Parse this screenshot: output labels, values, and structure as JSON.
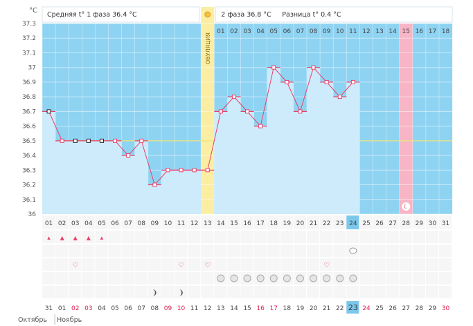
{
  "header": {
    "unit": "°C",
    "phase1": "Средняя t° 1 фаза 36.4 °C",
    "phase2": "2 фаза 36.8 °C",
    "diff": "Разница t° 0.4 °C",
    "ovulation_label": "ОВУЛЯЦИЯ"
  },
  "colors": {
    "sky": "#8fd3f2",
    "bar": "#cdebfb",
    "line": "#e8406a",
    "ovulation": "#fbeea2",
    "period": "#f7b5c5",
    "today": "#7cc8ec",
    "cover_line": "#ebe67a",
    "red_date": "#e02050"
  },
  "chart_data": {
    "type": "line",
    "ylabel": "°C",
    "ylim": [
      36.0,
      37.3
    ],
    "yticks": [
      "37.3",
      "37.2",
      "37.1",
      "37",
      "36.9",
      "36.8",
      "36.7",
      "36.6",
      "36.5",
      "36.4",
      "36.3",
      "36.2",
      "36.1",
      "36"
    ],
    "cycle_days": [
      "01",
      "02",
      "03",
      "04",
      "05",
      "06",
      "07",
      "08",
      "09",
      "10",
      "11",
      "12",
      "13",
      "14",
      "15",
      "16",
      "17",
      "18",
      "19",
      "20",
      "21",
      "22",
      "23",
      "24",
      "25",
      "26",
      "27",
      "28",
      "29",
      "30",
      "31"
    ],
    "temperatures": [
      36.7,
      36.5,
      36.5,
      36.5,
      36.5,
      36.5,
      36.4,
      36.5,
      36.2,
      36.3,
      36.3,
      36.3,
      36.3,
      36.7,
      36.8,
      36.7,
      36.6,
      37.0,
      36.9,
      36.7,
      37.0,
      36.9,
      36.8,
      36.9
    ],
    "black_markers_days": [
      1,
      3,
      4,
      5
    ],
    "ovulation_day": 13,
    "coverline": 36.5,
    "phase2_days": [
      "01",
      "02",
      "03",
      "04",
      "05",
      "06",
      "07",
      "08",
      "09",
      "10",
      "11",
      "12",
      "13",
      "14",
      "15",
      "16",
      "17",
      "18"
    ],
    "period_phase2_day": "15",
    "today_cycle_day": "24",
    "calendar_dates": [
      "31",
      "01",
      "02",
      "03",
      "04",
      "05",
      "06",
      "07",
      "08",
      "09",
      "10",
      "11",
      "12",
      "13",
      "14",
      "15",
      "16",
      "17",
      "18",
      "19",
      "20",
      "21",
      "22",
      "23",
      "24",
      "25",
      "26",
      "27",
      "28",
      "29",
      "30"
    ],
    "calendar_red_dates": [
      "02",
      "03",
      "09",
      "10",
      "16",
      "17",
      "23",
      "24",
      "30"
    ],
    "today_calendar_date": "23",
    "months": [
      "Октябрь",
      "Ноябрь"
    ]
  },
  "symbols": {
    "drops": [
      1,
      2,
      3,
      4,
      5
    ],
    "hearts": [
      3,
      11,
      13,
      22
    ],
    "moon_day": 28,
    "cloud_day": 24,
    "pills": [
      14,
      15,
      16,
      17,
      18,
      19,
      20,
      21,
      22,
      23,
      24
    ],
    "spiral_days": [
      9,
      11
    ]
  }
}
